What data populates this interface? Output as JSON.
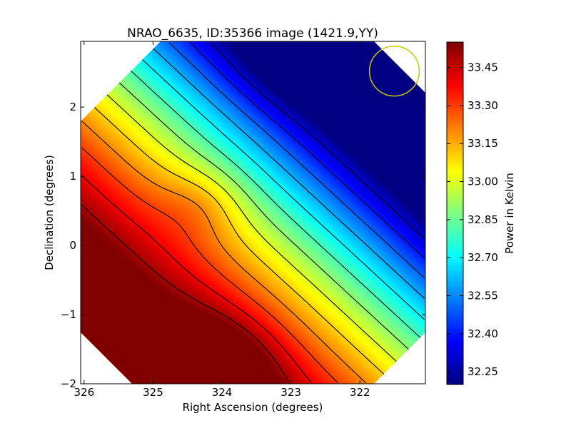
{
  "chart_data": {
    "type": "heatmap",
    "title": "NRAO_6635, ID:35366 image (1421.9,YY)",
    "xlabel": "Right Ascension (degrees)",
    "ylabel": "Declination (degrees)",
    "xlim": [
      326.05,
      321.05
    ],
    "ylim": [
      -2.0,
      2.95
    ],
    "xticks": [
      326,
      325,
      324,
      323,
      322
    ],
    "xtick_labels": [
      "326",
      "325",
      "324",
      "323",
      "322"
    ],
    "yticks": [
      -2,
      -1,
      0,
      1,
      2
    ],
    "ytick_labels": [
      "−2",
      "−1",
      "0",
      "1",
      "2"
    ],
    "colorbar": {
      "label": "Power in Kelvin",
      "range": [
        32.2,
        33.55
      ],
      "ticks": [
        32.25,
        32.4,
        32.55,
        32.7,
        32.85,
        33.0,
        33.15,
        33.3,
        33.45
      ],
      "tick_labels": [
        "32.25",
        "32.40",
        "32.55",
        "32.70",
        "32.85",
        "33.00",
        "33.15",
        "33.30",
        "33.45"
      ],
      "colormap": "jet"
    },
    "field_shape": "octagon",
    "gradient": {
      "max": {
        "ra": 324.2,
        "dec": -1.85,
        "value": 33.55
      },
      "min": {
        "ra": 322.4,
        "dec": 2.6,
        "value": 32.2
      },
      "ridge_dec": 0.6
    },
    "contour_levels": [
      32.3,
      32.4,
      32.5,
      32.6,
      32.7,
      32.8,
      32.9,
      33.0,
      33.1,
      33.2,
      33.3,
      33.4,
      33.5
    ],
    "contour_color": "#000000",
    "beam_marker": {
      "shape": "circle",
      "ra": 321.5,
      "dec": 2.52,
      "radius_deg": 0.36,
      "color": "#c8c800"
    },
    "grid": false
  }
}
